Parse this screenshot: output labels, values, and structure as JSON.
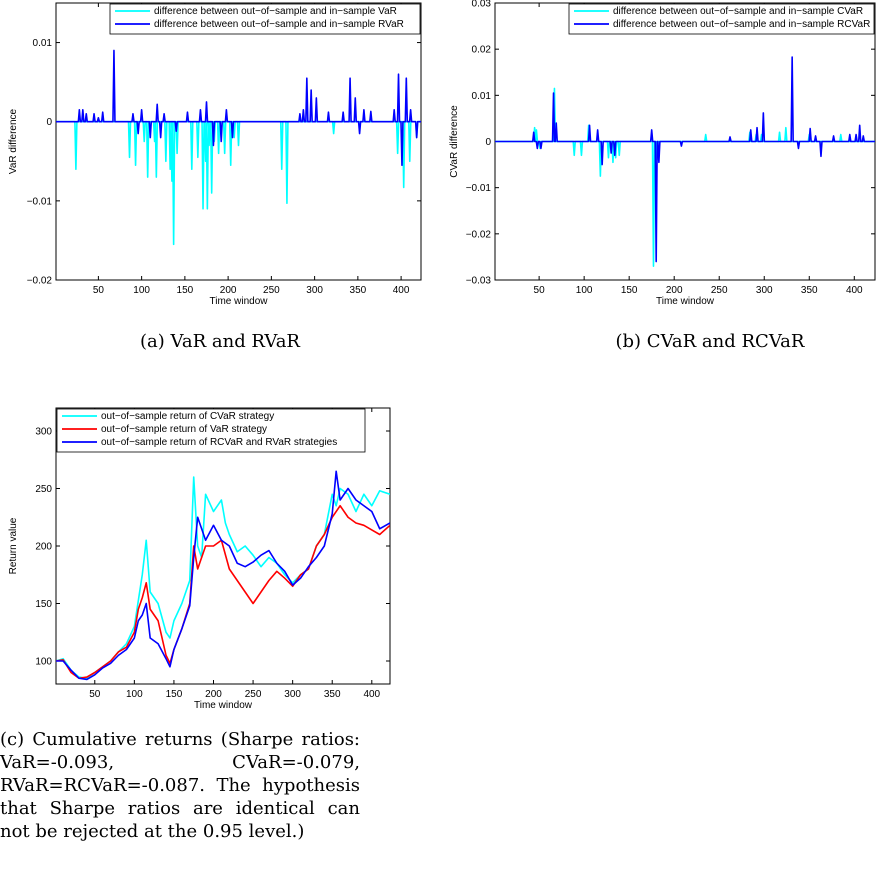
{
  "charts": {
    "a": {
      "caption": "(a) VaR and RVaR",
      "chart_data": {
        "type": "line",
        "title": "",
        "xlabel": "Time window",
        "ylabel": "VaR difference",
        "xlim": [
          1,
          423
        ],
        "ylim": [
          -0.02,
          0.015
        ],
        "xticks": [
          50,
          100,
          150,
          200,
          250,
          300,
          350,
          400
        ],
        "yticks": [
          -0.02,
          -0.01,
          0,
          0.01
        ],
        "ytick_labels": [
          "−0.02",
          "−0.01",
          "0",
          "0.01"
        ],
        "legend_position": "top-right",
        "series": [
          {
            "name": "difference between out−of−sample and in−sample VaR",
            "color": "#00ffff",
            "x": [
              24,
              86,
              93,
              103,
              107,
              115,
              117,
              128,
              133,
              135,
              137,
              141,
              158,
              165,
              171,
              174,
              176,
              178,
              181,
              184,
              189,
              196,
              203,
              207,
              212,
              262,
              268,
              322,
              396,
              403,
              410,
              418
            ],
            "y": [
              -0.006,
              -0.0045,
              -0.0055,
              -0.0025,
              -0.007,
              -0.0025,
              -0.007,
              -0.005,
              -0.006,
              -0.0075,
              -0.0155,
              -0.004,
              -0.006,
              -0.0045,
              -0.011,
              -0.005,
              -0.011,
              -0.003,
              -0.009,
              -0.0025,
              -0.004,
              -0.004,
              -0.0055,
              -0.002,
              -0.003,
              -0.006,
              -0.0103,
              -0.0015,
              -0.004,
              -0.0083,
              -0.005,
              -0.002
            ]
          },
          {
            "name": "difference between out−of−sample and in−sample RVaR",
            "color": "#0000ff",
            "x": [
              28,
              32,
              36,
              45,
              50,
              55,
              68,
              90,
              96,
              100,
              110,
              118,
              122,
              126,
              140,
              153,
              168,
              175,
              183,
              192,
              198,
              205,
              283,
              287,
              291,
              296,
              302,
              316,
              333,
              341,
              347,
              352,
              357,
              365,
              392,
              397,
              401,
              406,
              411,
              418
            ],
            "y": [
              0.0015,
              0.0015,
              0.001,
              0.001,
              0.0005,
              0.0012,
              0.009,
              0.001,
              -0.0015,
              0.0015,
              -0.002,
              0.0022,
              -0.002,
              0.001,
              -0.0012,
              0.0012,
              0.0015,
              0.0025,
              -0.003,
              -0.0025,
              0.0015,
              -0.002,
              0.001,
              0.0015,
              0.0055,
              0.004,
              0.003,
              0.0012,
              0.0012,
              0.0055,
              0.003,
              -0.0015,
              0.0015,
              0.0013,
              0.0015,
              0.006,
              -0.0055,
              0.0055,
              0.0015,
              -0.002
            ]
          }
        ]
      }
    },
    "b": {
      "caption": "(b) CVaR and RCVaR",
      "chart_data": {
        "type": "line",
        "title": "",
        "xlabel": "Time window",
        "ylabel": "CVaR difference",
        "xlim": [
          1,
          423
        ],
        "ylim": [
          -0.03,
          0.03
        ],
        "xticks": [
          50,
          100,
          150,
          200,
          250,
          300,
          350,
          400
        ],
        "yticks": [
          -0.03,
          -0.02,
          -0.01,
          0,
          0.01,
          0.02,
          0.03
        ],
        "ytick_labels": [
          "−0.03",
          "−0.02",
          "−0.01",
          "0",
          "0.01",
          "0.02",
          "0.03"
        ],
        "legend_position": "top-right",
        "series": [
          {
            "name": "difference between out−of−sample and in−sample CVaR",
            "color": "#00ffff",
            "x": [
              45,
              47,
              51,
              67,
              89,
              97,
              105,
              118,
              127,
              132,
              135,
              139,
              177,
              181,
              235,
              284,
              291,
              297,
              317,
              324,
              350,
              385
            ],
            "y": [
              0.003,
              0.0025,
              -0.0015,
              0.0115,
              -0.003,
              -0.003,
              0.0035,
              -0.0075,
              -0.0035,
              -0.0045,
              -0.0035,
              -0.003,
              -0.027,
              -0.004,
              0.0015,
              0.002,
              0.0015,
              0.0015,
              0.002,
              0.003,
              0.0015,
              0.0015
            ]
          },
          {
            "name": "difference between out−of−sample and in−sample RCVaR",
            "color": "#0000ff",
            "x": [
              44,
              48,
              52,
              66,
              69,
              106,
              115,
              120,
              130,
              134,
              175,
              180,
              183,
              208,
              262,
              285,
              292,
              299,
              331,
              338,
              351,
              357,
              363,
              377,
              395,
              402,
              406,
              410
            ],
            "y": [
              0.002,
              -0.0015,
              -0.0015,
              0.0105,
              0.004,
              0.0035,
              0.0025,
              -0.005,
              -0.0025,
              -0.003,
              0.0025,
              -0.026,
              -0.0045,
              -0.001,
              0.001,
              0.0025,
              0.003,
              0.0062,
              0.0183,
              -0.0015,
              0.0028,
              0.0012,
              -0.0032,
              0.0012,
              0.0015,
              0.0015,
              0.0035,
              0.0012
            ]
          }
        ]
      }
    },
    "c": {
      "caption": "(c) Cumulative returns (Sharpe ratios: VaR=-0.093, CVaR=-0.079, RVaR=RCVaR=-0.087. The hypothesis that Sharpe ratios are identical can not be rejected at the 0.95 level.)",
      "chart_data": {
        "type": "line",
        "title": "",
        "xlabel": "Time window",
        "ylabel": "Return value",
        "xlim": [
          1,
          423
        ],
        "ylim": [
          80,
          320
        ],
        "xticks": [
          50,
          100,
          150,
          200,
          250,
          300,
          350,
          400
        ],
        "yticks": [
          100,
          150,
          200,
          250,
          300
        ],
        "ytick_labels": [
          "100",
          "150",
          "200",
          "250",
          "300"
        ],
        "legend_position": "top-left",
        "series": [
          {
            "name": "out−of−sample return of CVaR strategy",
            "color": "#00ffff",
            "x": [
              1,
              10,
              20,
              30,
              40,
              50,
              60,
              70,
              80,
              90,
              100,
              110,
              115,
              120,
              130,
              140,
              145,
              150,
              160,
              170,
              175,
              180,
              185,
              190,
              200,
              210,
              215,
              220,
              230,
              240,
              250,
              260,
              270,
              280,
              290,
              300,
              310,
              320,
              330,
              340,
              350,
              355,
              360,
              370,
              380,
              390,
              400,
              410,
              423
            ],
            "y": [
              100,
              102,
              92,
              86,
              85,
              90,
              95,
              100,
              108,
              115,
              130,
              175,
              205,
              160,
              150,
              125,
              120,
              135,
              150,
              170,
              260,
              200,
              190,
              245,
              230,
              240,
              220,
              210,
              195,
              200,
              192,
              182,
              190,
              185,
              175,
              168,
              175,
              180,
              200,
              210,
              245,
              235,
              250,
              245,
              230,
              245,
              235,
              248,
              245
            ]
          },
          {
            "name": "out−of−sample return of VaR strategy",
            "color": "#ff0000",
            "x": [
              1,
              10,
              20,
              30,
              40,
              50,
              60,
              70,
              80,
              90,
              100,
              105,
              110,
              115,
              120,
              130,
              140,
              145,
              150,
              160,
              170,
              175,
              180,
              190,
              200,
              210,
              220,
              230,
              240,
              250,
              260,
              270,
              280,
              290,
              300,
              310,
              320,
              330,
              340,
              350,
              360,
              370,
              380,
              390,
              400,
              410,
              423
            ],
            "y": [
              100,
              101,
              90,
              85,
              86,
              90,
              95,
              100,
              108,
              112,
              125,
              145,
              155,
              168,
              145,
              135,
              105,
              98,
              110,
              128,
              150,
              200,
              180,
              200,
              200,
              205,
              180,
              170,
              160,
              150,
              160,
              170,
              178,
              172,
              165,
              175,
              180,
              200,
              210,
              225,
              235,
              225,
              220,
              218,
              214,
              210,
              218
            ]
          },
          {
            "name": "out−of−sample return of RCVaR and RVaR strategies",
            "color": "#0000ff",
            "x": [
              1,
              10,
              20,
              30,
              40,
              50,
              60,
              70,
              80,
              90,
              100,
              105,
              110,
              115,
              120,
              130,
              140,
              145,
              150,
              160,
              170,
              175,
              180,
              190,
              200,
              210,
              220,
              230,
              240,
              250,
              260,
              270,
              280,
              290,
              300,
              310,
              320,
              330,
              340,
              350,
              355,
              360,
              370,
              380,
              390,
              400,
              410,
              423
            ],
            "y": [
              100,
              100,
              92,
              85,
              84,
              88,
              94,
              98,
              105,
              110,
              120,
              135,
              140,
              150,
              120,
              115,
              102,
              95,
              110,
              128,
              148,
              190,
              225,
              205,
              218,
              205,
              200,
              185,
              182,
              186,
              192,
              196,
              185,
              178,
              166,
              172,
              182,
              190,
              200,
              228,
              265,
              240,
              250,
              240,
              235,
              230,
              215,
              220
            ]
          }
        ]
      }
    }
  }
}
